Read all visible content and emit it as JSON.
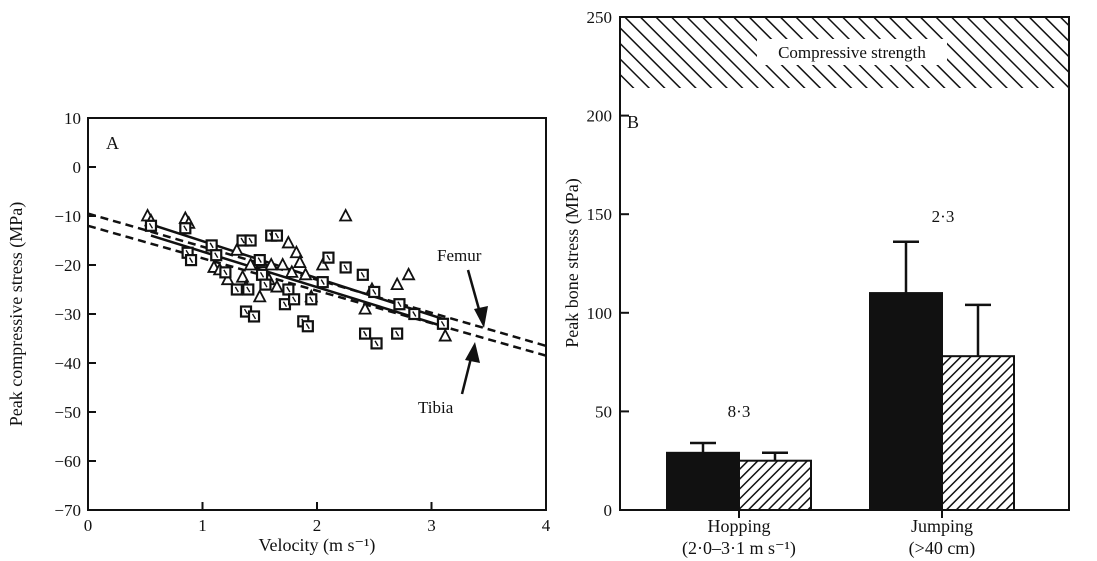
{
  "chart_data": [
    {
      "type": "scatter",
      "panel_label": "A",
      "xlabel": "Velocity (m s⁻¹)",
      "ylabel": "Peak compressive stress (MPa)",
      "xlim": [
        0,
        4
      ],
      "ylim": [
        -70,
        10
      ],
      "x_ticks": [
        "0",
        "1",
        "2",
        "3",
        "4"
      ],
      "y_ticks": [
        "10",
        "0",
        "−10",
        "−20",
        "−30",
        "−40",
        "−50",
        "−60",
        "−70"
      ],
      "series": [
        {
          "name": "Femur",
          "marker": "triangle",
          "points": [
            [
              0.52,
              -10
            ],
            [
              0.55,
              -11
            ],
            [
              0.85,
              -10.5
            ],
            [
              0.88,
              -11.5
            ],
            [
              1.1,
              -20.5
            ],
            [
              1.15,
              -21
            ],
            [
              1.22,
              -23
            ],
            [
              1.3,
              -17
            ],
            [
              1.35,
              -22.5
            ],
            [
              1.38,
              -24.5
            ],
            [
              1.42,
              -20
            ],
            [
              1.5,
              -26.5
            ],
            [
              1.52,
              -19.5
            ],
            [
              1.58,
              -23
            ],
            [
              1.6,
              -20
            ],
            [
              1.65,
              -24.5
            ],
            [
              1.7,
              -20
            ],
            [
              1.75,
              -15.5
            ],
            [
              1.78,
              -21.5
            ],
            [
              1.82,
              -17.5
            ],
            [
              1.85,
              -19.5
            ],
            [
              1.9,
              -22
            ],
            [
              1.95,
              -26.5
            ],
            [
              2.05,
              -20
            ],
            [
              2.25,
              -10
            ],
            [
              2.42,
              -29
            ],
            [
              2.48,
              -25
            ],
            [
              2.7,
              -24
            ],
            [
              2.8,
              -22
            ],
            [
              3.12,
              -34.5
            ]
          ],
          "fit": {
            "solid": [
              [
                0.52,
                -11.5
              ],
              [
                3.1,
                -31
              ]
            ],
            "dashed": [
              [
                0,
                -9.5
              ],
              [
                4,
                -36.5
              ]
            ]
          }
        },
        {
          "name": "Tibia",
          "marker": "square",
          "points": [
            [
              0.55,
              -12
            ],
            [
              0.85,
              -12.5
            ],
            [
              0.87,
              -17.5
            ],
            [
              0.9,
              -19
            ],
            [
              1.08,
              -16
            ],
            [
              1.12,
              -18
            ],
            [
              1.2,
              -21.5
            ],
            [
              1.3,
              -25
            ],
            [
              1.35,
              -15
            ],
            [
              1.38,
              -29.5
            ],
            [
              1.4,
              -25
            ],
            [
              1.42,
              -15
            ],
            [
              1.45,
              -30.5
            ],
            [
              1.5,
              -19
            ],
            [
              1.52,
              -22
            ],
            [
              1.55,
              -24
            ],
            [
              1.6,
              -14
            ],
            [
              1.65,
              -14
            ],
            [
              1.72,
              -28
            ],
            [
              1.75,
              -25
            ],
            [
              1.8,
              -27
            ],
            [
              1.88,
              -31.5
            ],
            [
              1.92,
              -32.5
            ],
            [
              1.95,
              -27
            ],
            [
              2.05,
              -23.5
            ],
            [
              2.1,
              -18.5
            ],
            [
              2.25,
              -20.5
            ],
            [
              2.4,
              -22
            ],
            [
              2.42,
              -34
            ],
            [
              2.5,
              -25.5
            ],
            [
              2.52,
              -36
            ],
            [
              2.7,
              -34
            ],
            [
              2.72,
              -28
            ],
            [
              2.85,
              -30
            ],
            [
              3.1,
              -32
            ]
          ],
          "fit": {
            "solid": [
              [
                0.55,
                -14
              ],
              [
                3.1,
                -32.5
              ]
            ],
            "dashed": [
              [
                0,
                -12
              ],
              [
                4,
                -38.5
              ]
            ]
          }
        }
      ],
      "annotations": [
        "Femur",
        "Tibia"
      ]
    },
    {
      "type": "bar",
      "panel_label": "B",
      "ylabel": "Peak bone stress (MPa)",
      "ylim": [
        0,
        250
      ],
      "y_ticks": [
        "0",
        "50",
        "100",
        "150",
        "200",
        "250"
      ],
      "categories": [
        {
          "line1": "Hopping",
          "line2": "(2·0–3·1 m s⁻¹)"
        },
        {
          "line1": "Jumping",
          "line2": "(>40 cm)"
        }
      ],
      "series": [
        {
          "fill": "solid",
          "values": [
            29,
            110
          ],
          "errors": [
            5,
            26
          ]
        },
        {
          "fill": "hatched",
          "values": [
            25,
            78
          ],
          "errors": [
            4,
            26
          ]
        }
      ],
      "bar_annotations": [
        "8·3",
        "2·3"
      ],
      "band": {
        "label": "Compressive strength",
        "range": [
          213,
          250
        ]
      }
    }
  ]
}
